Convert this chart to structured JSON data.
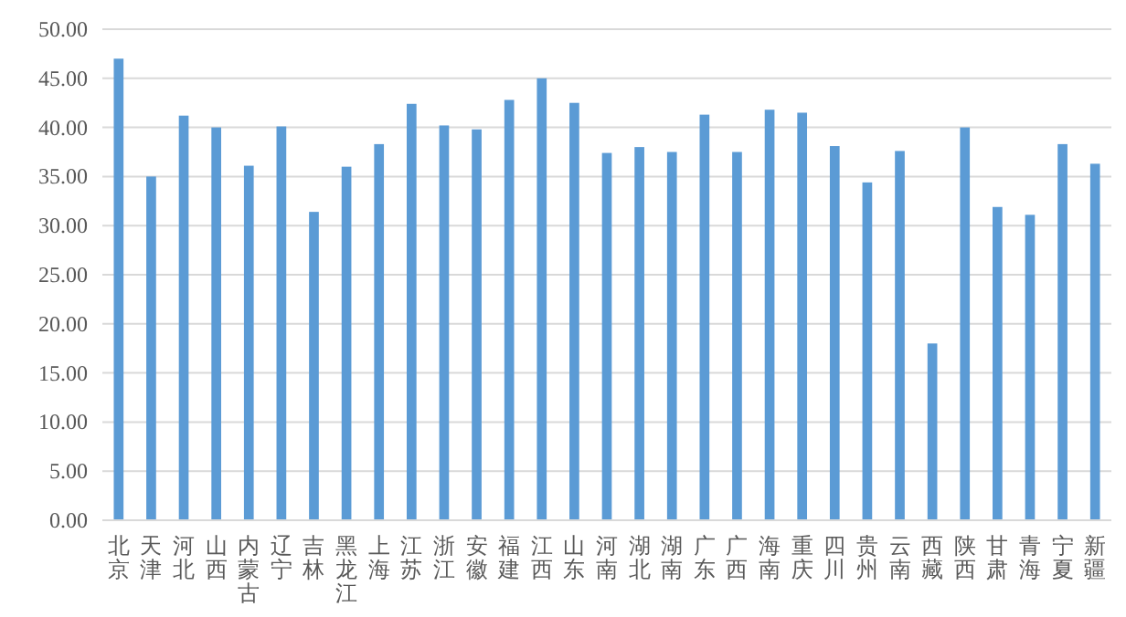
{
  "chart_data": {
    "type": "bar",
    "categories": [
      "北京",
      "天津",
      "河北",
      "山西",
      "内蒙古",
      "辽宁",
      "吉林",
      "黑龙江",
      "上海",
      "江苏",
      "浙江",
      "安徽",
      "福建",
      "江西",
      "山东",
      "河南",
      "湖北",
      "湖南",
      "广东",
      "广西",
      "海南",
      "重庆",
      "四川",
      "贵州",
      "云南",
      "西藏",
      "陕西",
      "甘肃",
      "青海",
      "宁夏",
      "新疆"
    ],
    "series": [
      {
        "color": "#5b9bd5",
        "values": [
          47.0,
          35.0,
          41.2,
          40.0,
          36.1,
          40.1,
          31.4,
          36.0,
          38.3,
          42.4,
          40.2,
          39.8,
          42.8,
          45.0,
          42.5,
          37.4,
          38.0,
          37.5,
          41.3,
          37.5,
          41.8,
          41.5,
          38.1,
          34.4,
          37.6,
          18.0,
          40.0,
          31.9,
          31.1,
          38.3,
          36.3
        ]
      }
    ],
    "ylim": [
      0,
      50
    ],
    "yticks": [
      {
        "value": 0,
        "label": "0.00"
      },
      {
        "value": 5,
        "label": "5.00"
      },
      {
        "value": 10,
        "label": "10.00"
      },
      {
        "value": 15,
        "label": "15.00"
      },
      {
        "value": 20,
        "label": "20.00"
      },
      {
        "value": 25,
        "label": "25.00"
      },
      {
        "value": 30,
        "label": "30.00"
      },
      {
        "value": 35,
        "label": "35.00"
      },
      {
        "value": 40,
        "label": "40.00"
      },
      {
        "value": 45,
        "label": "45.00"
      },
      {
        "value": 50,
        "label": "50.00"
      }
    ],
    "grid": "y"
  }
}
